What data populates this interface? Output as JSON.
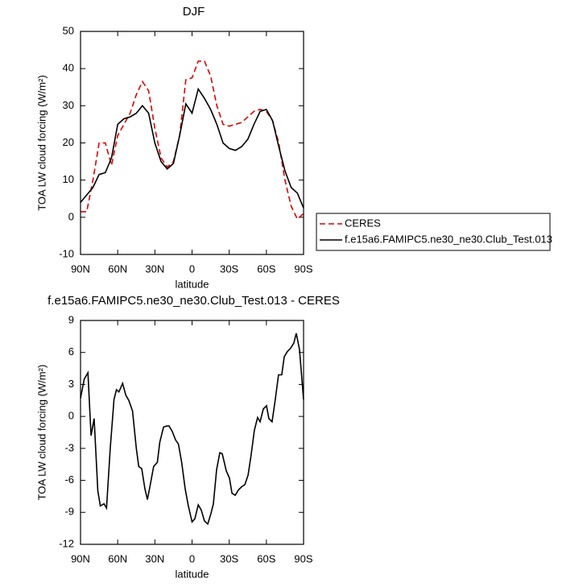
{
  "chart_data": [
    {
      "type": "line",
      "title": "DJF",
      "xlabel": "latitude",
      "ylabel": "TOA LW cloud forcing (W/m²)",
      "x": [
        90,
        85,
        80,
        75,
        70,
        65,
        60,
        55,
        50,
        45,
        40,
        35,
        30,
        25,
        20,
        15,
        10,
        5,
        0,
        -5,
        -10,
        -15,
        -20,
        -25,
        -30,
        -35,
        -40,
        -45,
        -50,
        -55,
        -60,
        -65,
        -70,
        -75,
        -80,
        -85,
        -90
      ],
      "series": [
        {
          "name": "CERES",
          "color": "#e00000",
          "linestyle": "dashed",
          "values": [
            1.5,
            1.5,
            10,
            20,
            20,
            14,
            22,
            25,
            28,
            33,
            36.5,
            34,
            24,
            16,
            13.5,
            15,
            22,
            37,
            37.5,
            42,
            42,
            38,
            30,
            25,
            24.5,
            25,
            25.5,
            27,
            28.5,
            29,
            28.5,
            26,
            20,
            10,
            3,
            -0.5,
            1
          ]
        },
        {
          "name": "f.e15a6.FAMIPC5.ne30_ne30.Club_Test.013",
          "color": "#000000",
          "linestyle": "solid",
          "values": [
            4,
            6,
            8,
            11.5,
            12,
            16,
            25,
            26.5,
            27,
            28,
            30,
            28,
            20,
            15,
            13,
            14.5,
            22,
            30.5,
            28,
            34.5,
            32,
            29,
            25,
            20,
            18.5,
            18,
            19,
            21,
            25,
            28.5,
            29,
            26,
            19,
            12.5,
            8,
            6.5,
            2.5
          ]
        }
      ],
      "xlim": [
        90,
        -90
      ],
      "xticks": [
        {
          "value": 90,
          "label": "90N"
        },
        {
          "value": 60,
          "label": "60N"
        },
        {
          "value": 30,
          "label": "30N"
        },
        0,
        {
          "value": -30,
          "label": "30S"
        },
        {
          "value": -60,
          "label": "60S"
        },
        {
          "value": -90,
          "label": "90S"
        }
      ],
      "ylim": [
        -10,
        50
      ],
      "yticks": [
        -10,
        0,
        10,
        20,
        30,
        40,
        50
      ],
      "legend": "right"
    },
    {
      "type": "line",
      "title": "f.e15a6.FAMIPC5.ne30_ne30.Club_Test.013 - CERES",
      "xlabel": "latitude",
      "ylabel": "TOA LW cloud forcing (W/m²)",
      "x": [
        90,
        87,
        84,
        81.5,
        79,
        76,
        74,
        71,
        69,
        66,
        63,
        61,
        59,
        56,
        53.5,
        51,
        48,
        45,
        43,
        40.6,
        38,
        36,
        33.5,
        31,
        28,
        26,
        23,
        20.5,
        18.5,
        16,
        13.3,
        11,
        8.4,
        5.5,
        3,
        0,
        -2.3,
        -5,
        -7.5,
        -10,
        -12.7,
        -15.3,
        -17.2,
        -19.8,
        -22.4,
        -24.4,
        -27.6,
        -30.2,
        -32.2,
        -34.8,
        -37.4,
        -40,
        -42.6,
        -45.2,
        -47.7,
        -50.3,
        -52.9,
        -54.9,
        -57.5,
        -60.1,
        -62,
        -64.6,
        -67.2,
        -69.8,
        -72.4,
        -74.4,
        -77,
        -79.6,
        -82.2,
        -84.1,
        -86.7,
        -90
      ],
      "series": [
        {
          "name": null,
          "color": "#000000",
          "linestyle": "solid",
          "values": [
            1.7,
            3.5,
            4.1,
            -1.8,
            -0.2,
            -7,
            -8.4,
            -8.2,
            -8.6,
            -3,
            1.6,
            2.5,
            2.3,
            3.1,
            2,
            1.5,
            0.5,
            -3,
            -4.7,
            -4.9,
            -6.8,
            -7.8,
            -6.3,
            -4.7,
            -4.3,
            -2.4,
            -1,
            -0.9,
            -0.9,
            -1.4,
            -2.2,
            -2.6,
            -4.3,
            -6.8,
            -8.4,
            -9.9,
            -9.6,
            -8.3,
            -8.8,
            -9.8,
            -10.1,
            -9.1,
            -8.2,
            -5,
            -3.4,
            -3.5,
            -5.1,
            -5.8,
            -7.2,
            -7.4,
            -6.9,
            -6.6,
            -6.4,
            -5.5,
            -3.6,
            -1.3,
            -0.1,
            -0.5,
            0.7,
            1,
            -0.2,
            -0.5,
            1.6,
            3.9,
            3.9,
            5.6,
            6.1,
            6.4,
            6.9,
            7.8,
            6.3,
            1.6
          ]
        }
      ],
      "xlim": [
        90,
        -90
      ],
      "xticks": [
        {
          "value": 90,
          "label": "90N"
        },
        {
          "value": 60,
          "label": "60N"
        },
        {
          "value": 30,
          "label": "30N"
        },
        0,
        {
          "value": -30,
          "label": "30S"
        },
        {
          "value": -60,
          "label": "60S"
        },
        {
          "value": -90,
          "label": "90S"
        }
      ],
      "ylim": [
        -12,
        9
      ],
      "yticks": [
        -12,
        -9,
        -6,
        -3,
        0,
        3,
        6,
        9
      ]
    }
  ]
}
